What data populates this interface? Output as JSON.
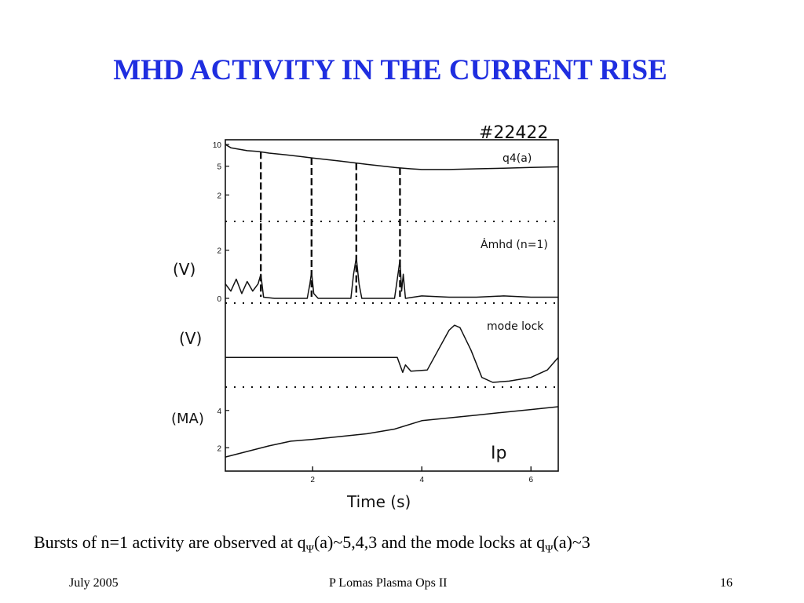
{
  "slide": {
    "title": "MHD ACTIVITY IN THE CURRENT RISE",
    "caption": {
      "p1": "Bursts of n=1 activity are observed at q",
      "sub1": "Ψ",
      "p2": "(a)~5,4,3 and the mode locks at q",
      "sub2": "Ψ",
      "p3": "(a)~3"
    },
    "footer": {
      "date": "July 2005",
      "center": "P Lomas  Plasma Ops II",
      "page": "16"
    }
  },
  "chart_data": {
    "type": "line",
    "shot_label": "#22422",
    "xlabel": "Time (s)",
    "xlim": [
      0.4,
      6.5
    ],
    "x_ticks": [
      "2",
      "4",
      "6"
    ],
    "x_tick_values": [
      2,
      4,
      6
    ],
    "panels": [
      {
        "name": "q",
        "label": "q4(a)",
        "y_unit": "",
        "scale": "log",
        "ylim": [
          1,
          10
        ],
        "y_ticks": [
          "10",
          "5",
          "2"
        ],
        "y_tick_values": [
          10,
          5,
          2
        ],
        "x": [
          0.4,
          0.5,
          0.8,
          1.0,
          1.2,
          1.5,
          2.0,
          2.5,
          3.0,
          3.5,
          3.8,
          4.0,
          4.5,
          5.0,
          5.5,
          6.0,
          6.5
        ],
        "values": [
          10,
          9.0,
          8.2,
          8.0,
          7.6,
          7.2,
          6.5,
          5.9,
          5.3,
          4.8,
          4.6,
          4.5,
          4.5,
          4.6,
          4.7,
          4.8,
          4.9
        ],
        "markers_x": [
          1.05,
          1.98,
          2.8,
          3.6
        ]
      },
      {
        "name": "amhd",
        "label": "Ȧmhd (n=1)",
        "y_unit": "(V)",
        "ylim": [
          0,
          3
        ],
        "y_ticks": [
          "2",
          "0"
        ],
        "y_tick_values": [
          2,
          0
        ],
        "x": [
          0.4,
          0.5,
          0.6,
          0.7,
          0.8,
          0.9,
          1.0,
          1.05,
          1.1,
          1.3,
          1.6,
          1.9,
          1.95,
          1.98,
          2.02,
          2.1,
          2.5,
          2.7,
          2.75,
          2.8,
          2.85,
          2.9,
          3.2,
          3.5,
          3.57,
          3.6,
          3.63,
          3.66,
          3.7,
          4.0,
          4.5,
          5.0,
          5.5,
          6.0,
          6.5
        ],
        "values": [
          0.6,
          0.3,
          0.8,
          0.2,
          0.7,
          0.3,
          0.6,
          1.0,
          0.05,
          0.0,
          0.0,
          0.0,
          0.6,
          1.1,
          0.2,
          0.0,
          0.0,
          0.0,
          1.0,
          1.7,
          0.6,
          0.0,
          0.0,
          0.0,
          1.1,
          1.6,
          0.3,
          1.0,
          0.0,
          0.1,
          0.05,
          0.05,
          0.1,
          0.05,
          0.05
        ]
      },
      {
        "name": "modelock",
        "label": "mode lock",
        "y_unit": "(V)",
        "ylim": [
          -1,
          2
        ],
        "y_ticks": [],
        "y_tick_values": [],
        "x": [
          0.4,
          1.0,
          2.0,
          3.0,
          3.55,
          3.6,
          3.65,
          3.7,
          3.8,
          4.1,
          4.3,
          4.5,
          4.6,
          4.7,
          4.9,
          5.1,
          5.3,
          5.6,
          6.0,
          6.3,
          6.5
        ],
        "values": [
          0,
          0,
          0,
          0,
          0,
          -0.3,
          -0.6,
          -0.3,
          -0.55,
          -0.5,
          0.3,
          1.1,
          1.3,
          1.2,
          0.3,
          -0.8,
          -1.0,
          -0.95,
          -0.8,
          -0.5,
          0.0
        ]
      },
      {
        "name": "ip",
        "label": "Ip",
        "y_unit": "(MA)",
        "ylim": [
          1,
          5
        ],
        "y_ticks": [
          "4",
          "2"
        ],
        "y_tick_values": [
          4,
          2
        ],
        "x": [
          0.4,
          0.8,
          1.2,
          1.6,
          2.0,
          2.5,
          3.0,
          3.5,
          4.0,
          4.5,
          5.0,
          5.5,
          6.0,
          6.5
        ],
        "values": [
          1.5,
          1.8,
          2.1,
          2.35,
          2.45,
          2.6,
          2.75,
          3.0,
          3.45,
          3.6,
          3.75,
          3.9,
          4.05,
          4.2
        ]
      }
    ]
  }
}
